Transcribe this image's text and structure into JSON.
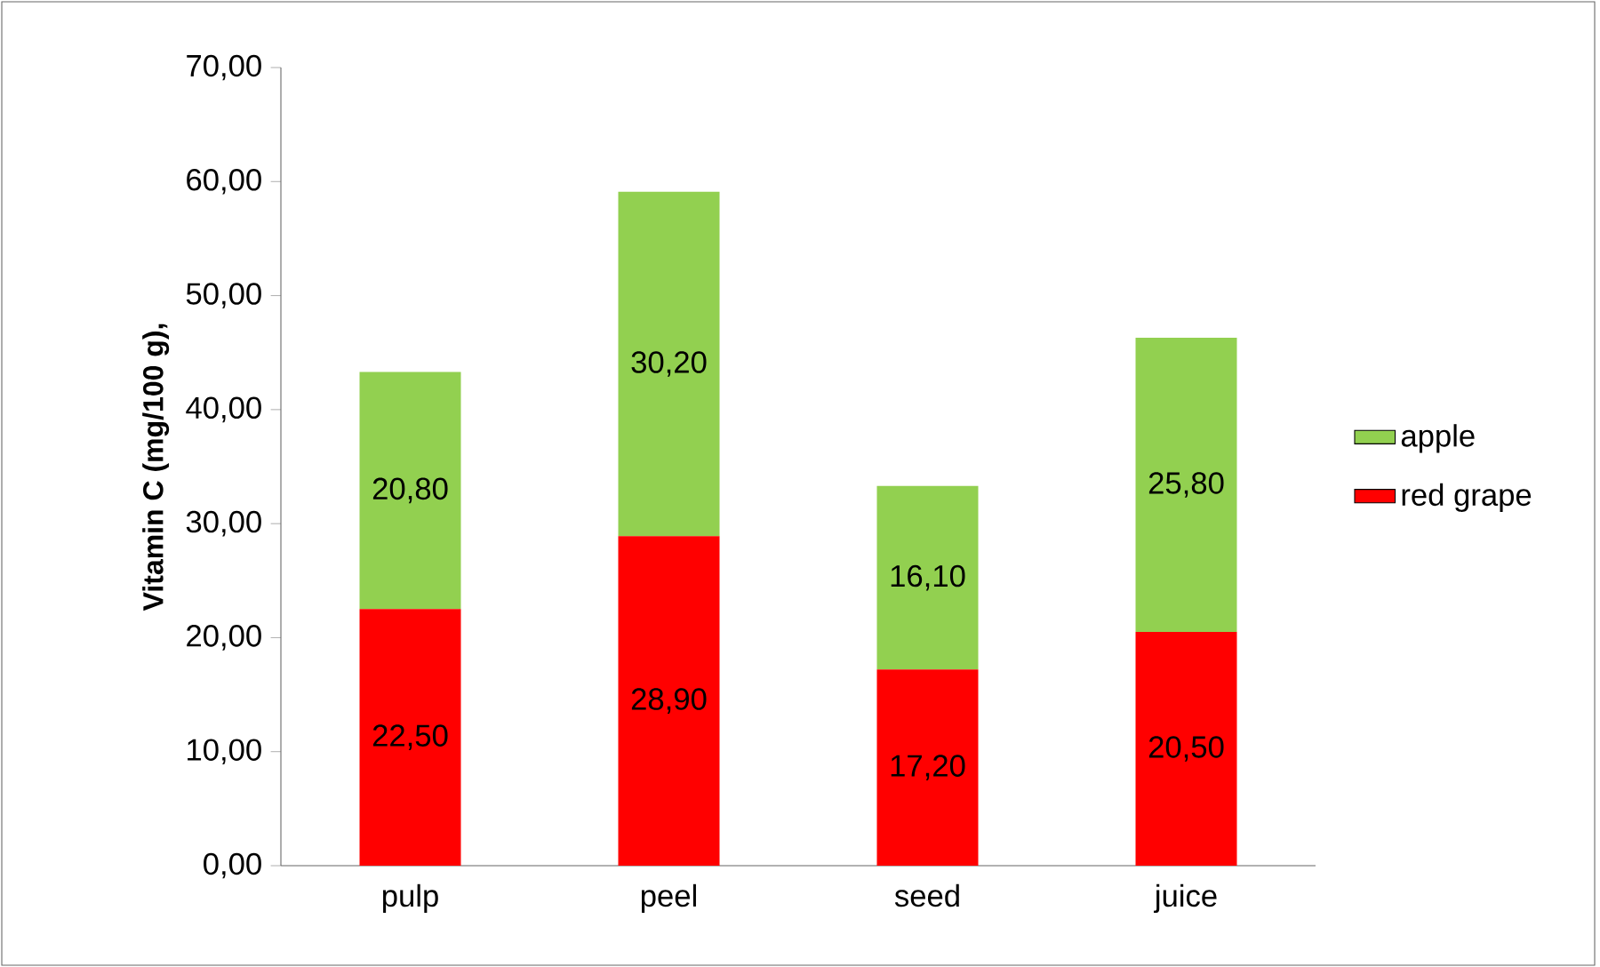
{
  "chart_data": {
    "type": "bar",
    "stacked": true,
    "ylabel": "Vitamin C (mg/100 g),",
    "categories": [
      "pulp",
      "peel",
      "seed",
      "juice"
    ],
    "series": [
      {
        "name": "red grape",
        "color": "#ff0000",
        "values": [
          22.5,
          28.9,
          17.2,
          20.5
        ],
        "value_labels": [
          "22,50",
          "28,90",
          "17,20",
          "20,50"
        ]
      },
      {
        "name": "apple",
        "color": "#92d050",
        "values": [
          20.8,
          30.2,
          16.1,
          25.8
        ],
        "value_labels": [
          "20,80",
          "30,20",
          "16,10",
          "25,80"
        ]
      }
    ],
    "ylim": [
      0,
      70
    ],
    "yticks": [
      {
        "value": 0,
        "label": "0,00"
      },
      {
        "value": 10,
        "label": "10,00"
      },
      {
        "value": 20,
        "label": "20,00"
      },
      {
        "value": 30,
        "label": "30,00"
      },
      {
        "value": 40,
        "label": "40,00"
      },
      {
        "value": 50,
        "label": "50,00"
      },
      {
        "value": 60,
        "label": "60,00"
      },
      {
        "value": 70,
        "label": "70,00"
      }
    ],
    "legend": "right"
  }
}
